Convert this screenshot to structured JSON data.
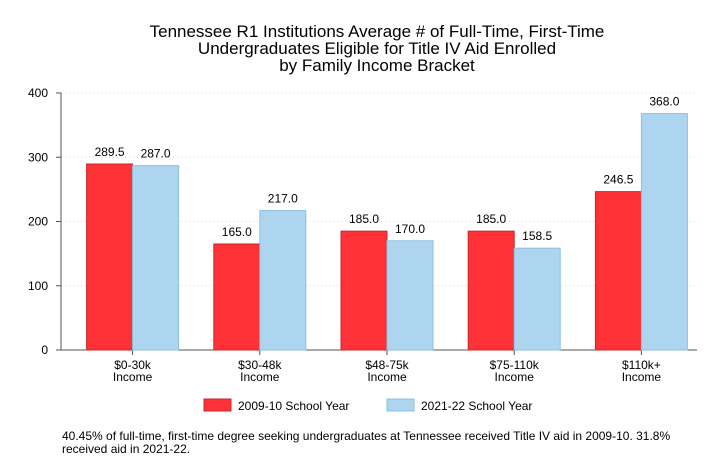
{
  "chart_data": {
    "type": "bar",
    "title_lines": [
      "Tennessee R1 Institutions Average # of Full-Time, First-Time",
      "Undergraduates Eligible for Title IV Aid Enrolled",
      "by Family Income Bracket"
    ],
    "categories": [
      [
        "$0-30k",
        "Income"
      ],
      [
        "$30-48k",
        "Income"
      ],
      [
        "$48-75k",
        "Income"
      ],
      [
        "$75-110k",
        "Income"
      ],
      [
        "$110k+",
        "Income"
      ]
    ],
    "series": [
      {
        "name": "2009-10 School Year",
        "values": [
          289.5,
          165.0,
          185.0,
          185.0,
          246.5
        ],
        "labels": [
          "289.5",
          "165.0",
          "185.0",
          "185.0",
          "246.5"
        ]
      },
      {
        "name": "2021-22 School Year",
        "values": [
          287.0,
          217.0,
          170.0,
          158.5,
          368.0
        ],
        "labels": [
          "287.0",
          "217.0",
          "170.0",
          "158.5",
          "368.0"
        ]
      }
    ],
    "ylim": [
      0,
      400
    ],
    "yticks": [
      "0",
      "100",
      "200",
      "300",
      "400"
    ],
    "grid": true,
    "legend_position": "bottom"
  },
  "colors": {
    "series": [
      "#fd3136",
      "#add5f0"
    ],
    "series_edge": [
      "#c8282c",
      "#8dc0e3"
    ],
    "grid": "#d6d6d6",
    "axis": "#555555"
  },
  "note": "40.45% of full-time, first-time degree seeking undergraduates at Tennessee received Title IV aid in 2009-10. 31.8% received aid in 2021-22."
}
